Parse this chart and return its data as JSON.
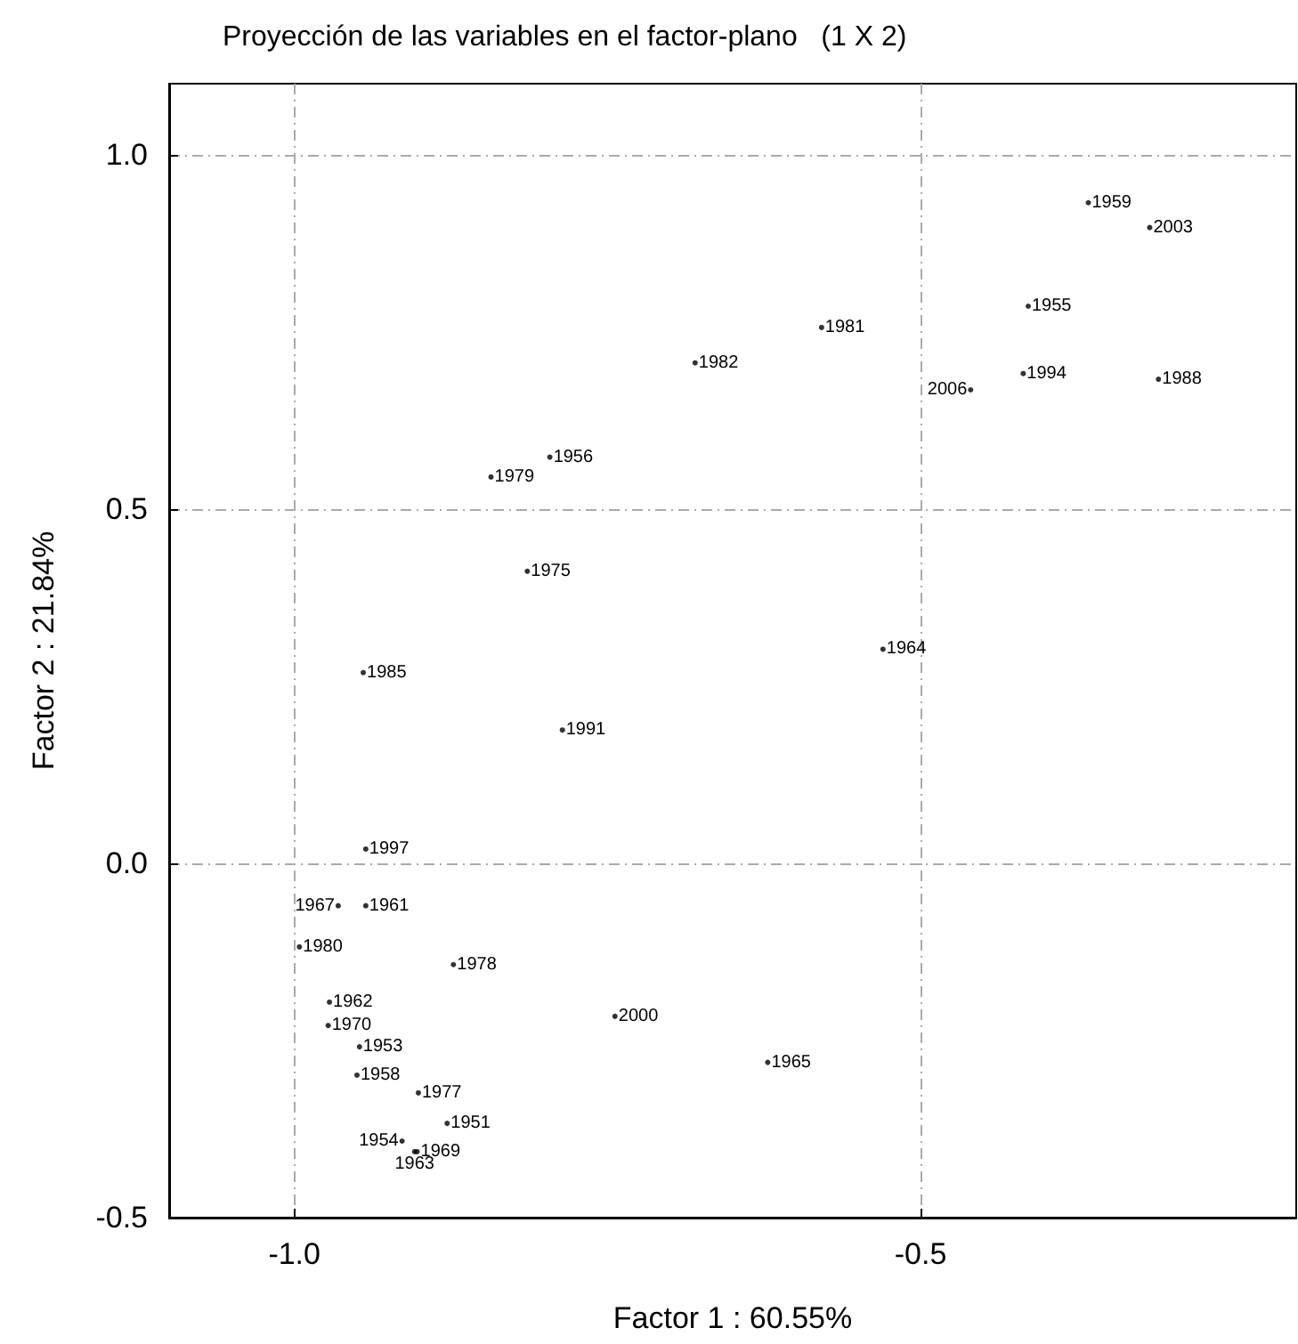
{
  "chart_data": {
    "type": "scatter",
    "title": "Proyección de las variables en el factor-plano   (1 X 2)",
    "xlabel": "Factor 1 : 60.55%",
    "ylabel": "Factor 2 : 21.84%",
    "x": [
      -0.366,
      -0.317,
      -0.414,
      -0.579,
      -0.418,
      -0.46,
      -0.31,
      -0.68,
      -0.796,
      -0.843,
      -0.814,
      -0.53,
      -0.945,
      -0.786,
      -0.943,
      -0.965,
      -0.943,
      -0.996,
      -0.873,
      -0.972,
      -0.973,
      -0.744,
      -0.948,
      -0.622,
      -0.95,
      -0.901,
      -0.878,
      -0.914,
      -0.904,
      -0.902
    ],
    "values": [
      0.932,
      0.897,
      0.786,
      0.756,
      0.691,
      0.668,
      0.683,
      0.706,
      0.573,
      0.545,
      0.412,
      0.302,
      0.269,
      0.188,
      0.02,
      -0.06,
      -0.06,
      -0.118,
      -0.143,
      -0.196,
      -0.229,
      -0.216,
      -0.259,
      -0.281,
      -0.299,
      -0.324,
      -0.367,
      -0.392,
      -0.407,
      -0.407
    ],
    "annotations": [
      {
        "text": "1959",
        "x": -0.366,
        "y": 0.932
      },
      {
        "text": "2003",
        "x": -0.317,
        "y": 0.897
      },
      {
        "text": "1955",
        "x": -0.414,
        "y": 0.786
      },
      {
        "text": "1981",
        "x": -0.579,
        "y": 0.756
      },
      {
        "text": "1994",
        "x": -0.418,
        "y": 0.691
      },
      {
        "text": "2006",
        "x": -0.46,
        "y": 0.668
      },
      {
        "text": "1988",
        "x": -0.31,
        "y": 0.683
      },
      {
        "text": "1982",
        "x": -0.68,
        "y": 0.706
      },
      {
        "text": "1956",
        "x": -0.796,
        "y": 0.573
      },
      {
        "text": "1979",
        "x": -0.843,
        "y": 0.545
      },
      {
        "text": "1975",
        "x": -0.814,
        "y": 0.412
      },
      {
        "text": "1964",
        "x": -0.53,
        "y": 0.302
      },
      {
        "text": "1985",
        "x": -0.945,
        "y": 0.269
      },
      {
        "text": "1991",
        "x": -0.786,
        "y": 0.188
      },
      {
        "text": "1997",
        "x": -0.943,
        "y": 0.02
      },
      {
        "text": "1967",
        "x": -0.965,
        "y": -0.06
      },
      {
        "text": "1961",
        "x": -0.943,
        "y": -0.06
      },
      {
        "text": "1980",
        "x": -0.996,
        "y": -0.118
      },
      {
        "text": "1978",
        "x": -0.873,
        "y": -0.143
      },
      {
        "text": "1962",
        "x": -0.972,
        "y": -0.196
      },
      {
        "text": "1970",
        "x": -0.973,
        "y": -0.229
      },
      {
        "text": "2000",
        "x": -0.744,
        "y": -0.216
      },
      {
        "text": "1953",
        "x": -0.948,
        "y": -0.259
      },
      {
        "text": "1965",
        "x": -0.622,
        "y": -0.281
      },
      {
        "text": "1958",
        "x": -0.95,
        "y": -0.299
      },
      {
        "text": "1977",
        "x": -0.901,
        "y": -0.324
      },
      {
        "text": "1951",
        "x": -0.878,
        "y": -0.367
      },
      {
        "text": "1954",
        "x": -0.914,
        "y": -0.392
      },
      {
        "text": "1963",
        "x": -0.904,
        "y": -0.407
      },
      {
        "text": "1969",
        "x": -0.902,
        "y": -0.407
      }
    ],
    "color": "#000000",
    "marker": "circle",
    "xlim": [
      -1.1,
      -0.2
    ],
    "xticks": [
      {
        "value": -1,
        "label": "-1.0"
      },
      {
        "value": -0.5,
        "label": "-0.5"
      }
    ],
    "ylim": [
      -0.5,
      1.1
    ],
    "yticks": [
      {
        "value": -0.5,
        "label": "-0.5"
      },
      {
        "value": 0,
        "label": "0.0"
      },
      {
        "value": 0.5,
        "label": "0.5"
      },
      {
        "value": 1,
        "label": "1.0"
      }
    ],
    "grid": true
  }
}
